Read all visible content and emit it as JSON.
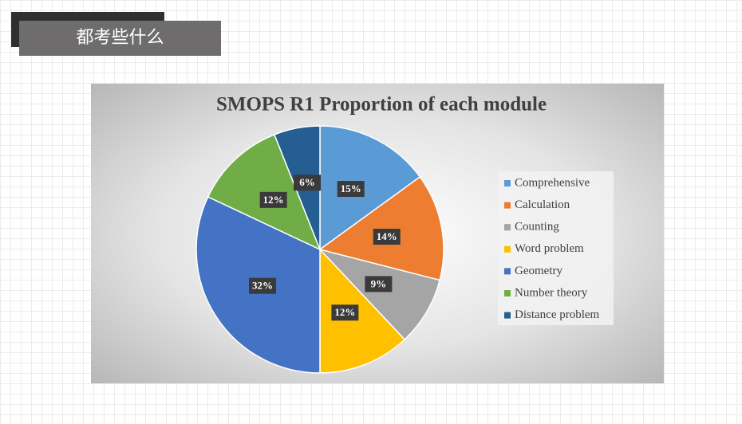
{
  "header": {
    "title": "都考些什么"
  },
  "chart_data": {
    "type": "pie",
    "title": "SMOPS R1 Proportion of each module",
    "categories": [
      "Comprehensive",
      "Calculation",
      "Counting",
      "Word problem",
      "Geometry",
      "Number theory",
      "Distance problem"
    ],
    "values": [
      15,
      14,
      9,
      12,
      32,
      12,
      6
    ],
    "value_labels": [
      "15%",
      "14%",
      "9%",
      "12%",
      "32%",
      "12%",
      "6%"
    ],
    "colors": [
      "#5b9bd5",
      "#ed7d31",
      "#a5a5a5",
      "#ffc000",
      "#4472c4",
      "#70ad47",
      "#255e91"
    ],
    "legend": "right"
  }
}
